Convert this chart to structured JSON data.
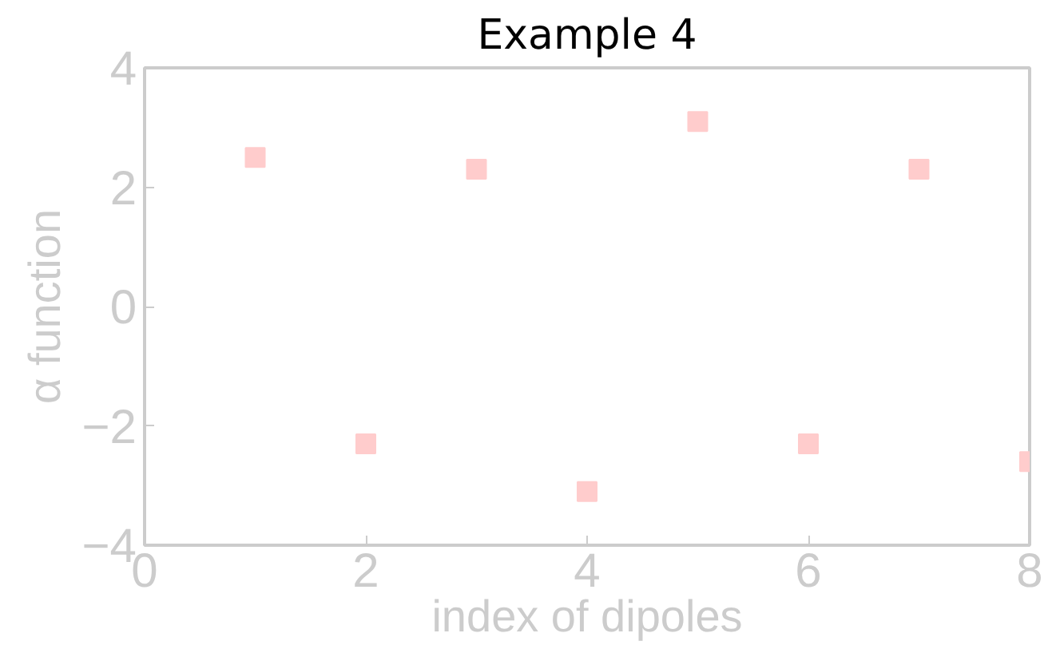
{
  "chart_data": {
    "type": "scatter",
    "title": "Example 4",
    "xlabel": "index of dipoles",
    "ylabel": "α function",
    "x": [
      1,
      2,
      3,
      4,
      5,
      6,
      7,
      8
    ],
    "series": [
      {
        "color": "#ffcccc",
        "values": [
          2.5,
          -2.3,
          2.3,
          -3.1,
          3.1,
          -2.3,
          2.3,
          -2.6
        ]
      }
    ],
    "xlim": [
      0,
      8
    ],
    "ylim": [
      -4,
      4
    ],
    "xticks": [
      0,
      2,
      4,
      6,
      8
    ],
    "yticks": [
      {
        "value": -4,
        "label": "−4"
      },
      {
        "value": -2,
        "label": "−2"
      },
      0,
      2,
      4
    ],
    "marker": "square",
    "grid": false
  }
}
